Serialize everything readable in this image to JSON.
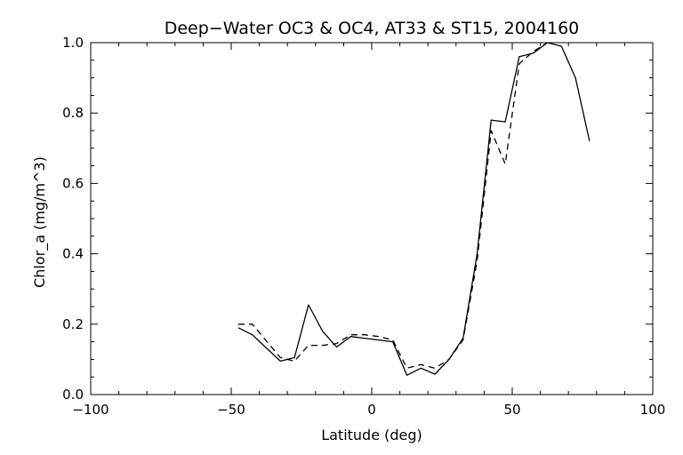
{
  "chart_data": {
    "type": "line",
    "title": "Deep−Water OC3 & OC4, AT33 & ST15, 2004160",
    "xlabel": "Latitude (deg)",
    "ylabel": "Chlor_a (mg/m^3)",
    "xlim": [
      -100,
      100
    ],
    "ylim": [
      0.0,
      1.0
    ],
    "x_ticks": [
      -100,
      -50,
      0,
      50,
      100
    ],
    "x_tick_labels": [
      "−100",
      "−50",
      "0",
      "50",
      "100"
    ],
    "y_ticks": [
      0.0,
      0.2,
      0.4,
      0.6,
      0.8,
      1.0
    ],
    "y_tick_labels": [
      "0.0",
      "0.2",
      "0.4",
      "0.6",
      "0.8",
      "1.0"
    ],
    "grid": false,
    "series": [
      {
        "style": "solid",
        "color": "#000000",
        "points": [
          [
            -47.5,
            0.19
          ],
          [
            -42.5,
            0.17
          ],
          [
            -32.5,
            0.095
          ],
          [
            -27.5,
            0.105
          ],
          [
            -22.5,
            0.255
          ],
          [
            -17.5,
            0.18
          ],
          [
            -12.5,
            0.135
          ],
          [
            -7.5,
            0.165
          ],
          [
            -2.5,
            0.16
          ],
          [
            2.5,
            0.155
          ],
          [
            7.5,
            0.15
          ],
          [
            12.5,
            0.055
          ],
          [
            17.5,
            0.075
          ],
          [
            22.5,
            0.058
          ],
          [
            27.5,
            0.1
          ],
          [
            32.5,
            0.16
          ],
          [
            37.5,
            0.4
          ],
          [
            42.5,
            0.78
          ],
          [
            47.5,
            0.775
          ],
          [
            52.5,
            0.96
          ],
          [
            57.5,
            0.97
          ],
          [
            62.5,
            1.0
          ],
          [
            67.5,
            0.99
          ],
          [
            72.5,
            0.9
          ],
          [
            77.5,
            0.72
          ]
        ]
      },
      {
        "style": "dashed",
        "color": "#000000",
        "points": [
          [
            -47.5,
            0.2
          ],
          [
            -42.5,
            0.2
          ],
          [
            -32.5,
            0.105
          ],
          [
            -27.5,
            0.095
          ],
          [
            -22.5,
            0.14
          ],
          [
            -17.5,
            0.14
          ],
          [
            -12.5,
            0.145
          ],
          [
            -7.5,
            0.17
          ],
          [
            -2.5,
            0.17
          ],
          [
            2.5,
            0.165
          ],
          [
            7.5,
            0.155
          ],
          [
            12.5,
            0.075
          ],
          [
            17.5,
            0.085
          ],
          [
            22.5,
            0.075
          ],
          [
            27.5,
            0.1
          ],
          [
            32.5,
            0.155
          ],
          [
            37.5,
            0.38
          ],
          [
            42.5,
            0.75
          ],
          [
            47.5,
            0.655
          ],
          [
            52.5,
            0.94
          ],
          [
            57.5,
            0.975
          ],
          [
            62.5,
            1.0
          ]
        ]
      }
    ]
  }
}
